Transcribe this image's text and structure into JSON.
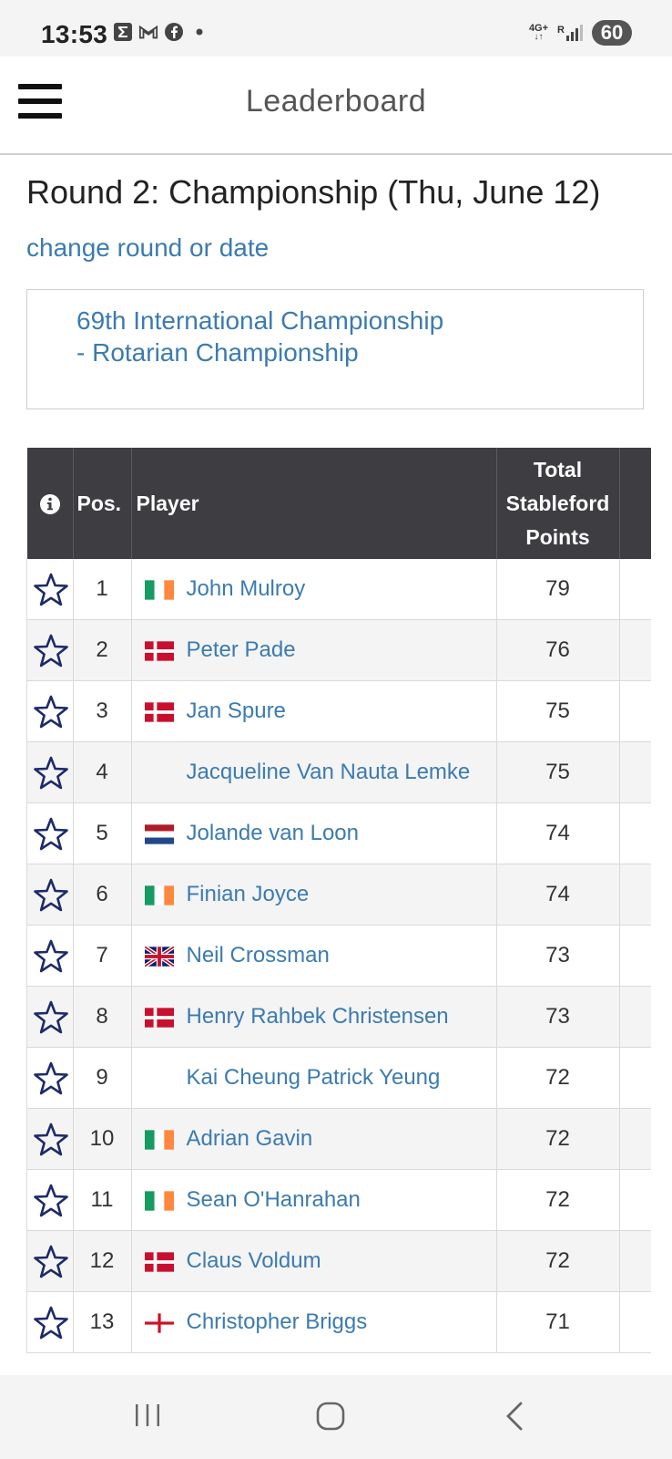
{
  "status": {
    "time": "13:53",
    "network_top": "4G+",
    "network_r": "R",
    "battery": "60"
  },
  "header": {
    "title": "Leaderboard"
  },
  "round_title": "Round 2: Championship (Thu, June 12)",
  "change_link": "change round or date",
  "event_name": "69th International Championship - Rotarian Championship",
  "table": {
    "headers": {
      "pos": "Pos.",
      "player": "Player",
      "points": "Total Stableford Points"
    },
    "rows": [
      {
        "pos": "1",
        "flag": "ireland",
        "player": "John Mulroy",
        "points": "79"
      },
      {
        "pos": "2",
        "flag": "denmark",
        "player": "Peter Pade",
        "points": "76"
      },
      {
        "pos": "3",
        "flag": "denmark",
        "player": "Jan Spure",
        "points": "75"
      },
      {
        "pos": "4",
        "flag": "none",
        "player": "Jacqueline Van Nauta Lemke",
        "points": "75"
      },
      {
        "pos": "5",
        "flag": "netherlands",
        "player": "Jolande van Loon",
        "points": "74"
      },
      {
        "pos": "6",
        "flag": "ireland",
        "player": "Finian Joyce",
        "points": "74"
      },
      {
        "pos": "7",
        "flag": "united-kingdom",
        "player": "Neil Crossman",
        "points": "73"
      },
      {
        "pos": "8",
        "flag": "denmark",
        "player": "Henry Rahbek Christensen",
        "points": "73"
      },
      {
        "pos": "9",
        "flag": "none",
        "player": "Kai Cheung Patrick Yeung",
        "points": "72"
      },
      {
        "pos": "10",
        "flag": "ireland",
        "player": "Adrian Gavin",
        "points": "72"
      },
      {
        "pos": "11",
        "flag": "ireland",
        "player": "Sean O'Hanrahan",
        "points": "72"
      },
      {
        "pos": "12",
        "flag": "denmark",
        "player": "Claus Voldum",
        "points": "72"
      },
      {
        "pos": "13",
        "flag": "england",
        "player": "Christopher Briggs",
        "points": "71"
      }
    ]
  },
  "colors": {
    "link": "#3b7bb0",
    "header_bg": "#3e3d42",
    "star": "#1d2a6b"
  },
  "icons": {
    "menu": "hamburger-icon",
    "info": "info-icon",
    "favorite": "star-outline-icon",
    "nav_recents": "recents-icon",
    "nav_home": "home-icon",
    "nav_back": "back-icon"
  }
}
